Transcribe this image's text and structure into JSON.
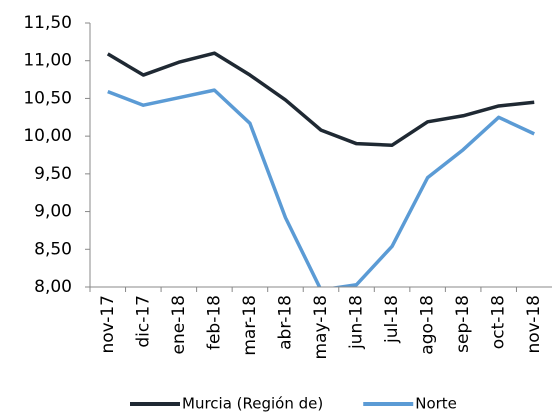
{
  "chart_data": {
    "type": "line",
    "categories": [
      "nov-17",
      "dic-17",
      "ene-18",
      "feb-18",
      "mar-18",
      "abr-18",
      "may-18",
      "jun-18",
      "jul-18",
      "ago-18",
      "sep-18",
      "oct-18",
      "nov-18"
    ],
    "series": [
      {
        "name": "Murcia (Región de)",
        "color": "#1f2933",
        "values": [
          11.09,
          10.81,
          10.98,
          11.1,
          10.81,
          10.48,
          10.08,
          9.9,
          9.88,
          10.19,
          10.27,
          10.4,
          10.45
        ]
      },
      {
        "name": "Norte",
        "color": "#5b9bd5",
        "values": [
          10.59,
          10.41,
          10.51,
          10.61,
          10.17,
          8.92,
          7.96,
          8.03,
          8.54,
          9.45,
          9.82,
          10.25,
          10.03
        ]
      }
    ],
    "ylim": [
      8.0,
      11.5
    ],
    "yticks": [
      {
        "value": 8.0,
        "label": "8,00"
      },
      {
        "value": 8.5,
        "label": "8,50"
      },
      {
        "value": 9.0,
        "label": "9,00"
      },
      {
        "value": 9.5,
        "label": "9,50"
      },
      {
        "value": 10.0,
        "label": "10,00"
      },
      {
        "value": 10.5,
        "label": "10,50"
      },
      {
        "value": 11.0,
        "label": "11,00"
      },
      {
        "value": 11.5,
        "label": "11,50"
      }
    ],
    "legend": "bottom"
  }
}
